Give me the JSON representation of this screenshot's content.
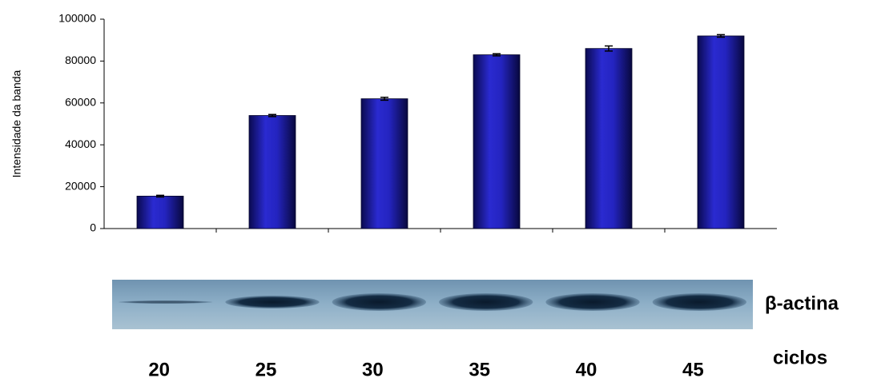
{
  "chart_data": {
    "type": "bar",
    "y_label": "Intensidade da banda",
    "categories": [
      "20",
      "25",
      "30",
      "35",
      "40",
      "45"
    ],
    "values": [
      15500,
      54000,
      62000,
      83000,
      86000,
      92000
    ],
    "errors": [
      400,
      500,
      700,
      500,
      1200,
      600
    ],
    "color": "#1c1ca8",
    "ylim": [
      0,
      100000
    ],
    "yticks": [
      0,
      20000,
      40000,
      60000,
      80000,
      100000
    ],
    "gel_label": "β-actina",
    "x_label": "ciclos"
  }
}
